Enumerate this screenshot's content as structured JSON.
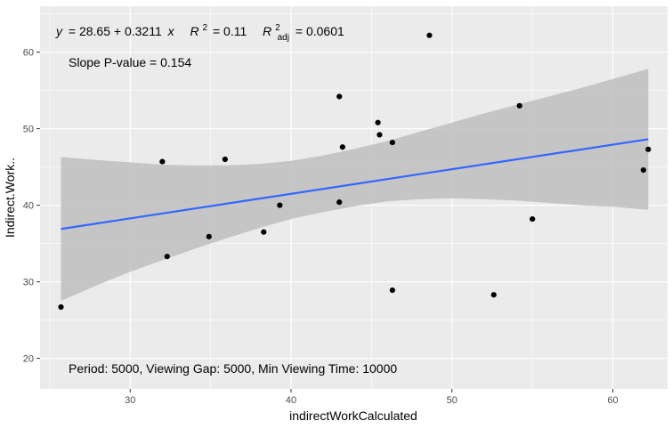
{
  "chart_data": {
    "type": "scatter",
    "xlabel": "indirectWorkCalculated",
    "ylabel": "Indirect.Work..",
    "xlim": [
      24.4,
      63.4
    ],
    "ylim": [
      16.0,
      66.0
    ],
    "x_ticks": [
      30,
      40,
      50,
      60
    ],
    "y_ticks": [
      20,
      30,
      40,
      50,
      60
    ],
    "grid": true,
    "background": "panel-grey",
    "points": [
      {
        "x": 25.7,
        "y": 26.7
      },
      {
        "x": 32.0,
        "y": 45.7
      },
      {
        "x": 32.3,
        "y": 33.3
      },
      {
        "x": 34.9,
        "y": 35.9
      },
      {
        "x": 35.9,
        "y": 46.0
      },
      {
        "x": 38.3,
        "y": 36.5
      },
      {
        "x": 39.3,
        "y": 40.0
      },
      {
        "x": 43.0,
        "y": 54.2
      },
      {
        "x": 43.0,
        "y": 40.4
      },
      {
        "x": 43.2,
        "y": 47.6
      },
      {
        "x": 45.4,
        "y": 50.8
      },
      {
        "x": 45.5,
        "y": 49.2
      },
      {
        "x": 46.3,
        "y": 28.9
      },
      {
        "x": 46.3,
        "y": 48.2
      },
      {
        "x": 48.6,
        "y": 62.2
      },
      {
        "x": 52.6,
        "y": 28.3
      },
      {
        "x": 54.2,
        "y": 53.0
      },
      {
        "x": 55.0,
        "y": 38.2
      },
      {
        "x": 61.9,
        "y": 44.6
      },
      {
        "x": 62.2,
        "y": 47.3
      }
    ],
    "regression": {
      "intercept": 28.65,
      "slope": 0.3211,
      "x_range": [
        25.7,
        62.2
      ],
      "color": "#3366ff"
    },
    "confidence_band": {
      "x": [
        25.7,
        28.0,
        30.0,
        32.0,
        34.0,
        36.0,
        38.0,
        40.0,
        42.0,
        44.0,
        46.0,
        48.0,
        50.0,
        52.0,
        54.0,
        56.0,
        58.0,
        60.0,
        62.2
      ],
      "upper": [
        46.3,
        45.9,
        45.6,
        45.3,
        45.2,
        45.2,
        45.4,
        45.8,
        46.5,
        47.4,
        48.4,
        49.6,
        50.8,
        52.0,
        53.1,
        54.2,
        55.3,
        56.5,
        57.8
      ],
      "lower": [
        27.5,
        29.6,
        31.3,
        32.8,
        34.3,
        35.7,
        37.0,
        38.2,
        39.1,
        39.9,
        40.5,
        40.8,
        40.9,
        40.8,
        40.6,
        40.3,
        40.0,
        39.8,
        39.4
      ],
      "color": "#bebebe"
    },
    "annotations": {
      "equation_y": "y",
      "equation_rhs": "= 28.65 + 0.3211",
      "equation_x": "x",
      "r2_symbol": "R",
      "r2_sup": "2",
      "r2_value": "= 0.11",
      "r2adj_symbol": "R",
      "r2adj_sup": "2",
      "r2adj_sub": "adj",
      "r2adj_value": "= 0.0601",
      "slope_p": "Slope P-value = 0.154",
      "footer": "Period: 5000, Viewing Gap: 5000, Min Viewing Time: 10000"
    }
  }
}
